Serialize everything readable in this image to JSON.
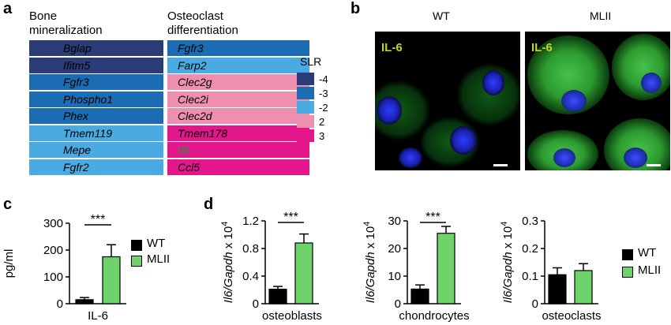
{
  "panels": {
    "a": "a",
    "b": "b",
    "c": "c",
    "d": "d"
  },
  "bone": {
    "title_line1": "Bone",
    "title_line2": "mineralization",
    "genes": [
      {
        "name": "Bglap",
        "slr": -4,
        "color": "#2b3c78"
      },
      {
        "name": "Ifitm5",
        "slr": -4,
        "color": "#2b3c78"
      },
      {
        "name": "Fgfr3",
        "slr": -3,
        "color": "#1b6cb2"
      },
      {
        "name": "Phospho1",
        "slr": -3,
        "color": "#1b6cb2"
      },
      {
        "name": "Phex",
        "slr": -3,
        "color": "#1b6cb2"
      },
      {
        "name": "Tmem119",
        "slr": -2,
        "color": "#4aabe2"
      },
      {
        "name": "Mepe",
        "slr": -2,
        "color": "#4aabe2"
      },
      {
        "name": "Fgfr2",
        "slr": -2,
        "color": "#4aabe2"
      }
    ]
  },
  "osteo": {
    "title_line1": "Osteoclast",
    "title_line2": "differentiation",
    "genes": [
      {
        "name": "Fgfr3",
        "slr": -3,
        "color": "#1b6cb2",
        "text_color": "#000000"
      },
      {
        "name": "Farp2",
        "slr": -2,
        "color": "#4aabe2",
        "text_color": "#000000"
      },
      {
        "name": "Clec2g",
        "slr": 2,
        "color": "#ef8fb0",
        "text_color": "#000000"
      },
      {
        "name": "Clec2i",
        "slr": 2,
        "color": "#ef8fb0",
        "text_color": "#000000"
      },
      {
        "name": "Clec2d",
        "slr": 2,
        "color": "#ef8fb0",
        "text_color": "#000000"
      },
      {
        "name": "Tmem178",
        "slr": 3,
        "color": "#e3168b",
        "text_color": "#000000"
      },
      {
        "name": "Il6",
        "slr": 3,
        "color": "#e3168b",
        "text_color": "#1a9a3a"
      },
      {
        "name": "Ccl5",
        "slr": 3,
        "color": "#e3168b",
        "text_color": "#000000"
      }
    ]
  },
  "slr_legend": {
    "title": "SLR",
    "entries": [
      {
        "label": "-4",
        "color": "#2b3c78"
      },
      {
        "label": "-3",
        "color": "#1b6cb2"
      },
      {
        "label": "-2",
        "color": "#4aabe2"
      },
      {
        "label": "2",
        "color": "#ef8fb0"
      },
      {
        "label": "3",
        "color": "#e3168b"
      }
    ]
  },
  "micrographs": {
    "wt_label": "WT",
    "mlii_label": "MLII",
    "stain": "IL-6"
  },
  "colors": {
    "wt": "#000000",
    "mlii": "#6fd36c"
  },
  "legend": {
    "wt": "WT",
    "mlii": "MLII"
  },
  "chart_data": [
    {
      "type": "bar",
      "panel": "c",
      "categories": [
        "IL-6"
      ],
      "series": [
        {
          "name": "WT",
          "values": [
            15
          ],
          "error": [
            8
          ]
        },
        {
          "name": "MLII",
          "values": [
            175
          ],
          "error": [
            45
          ]
        }
      ],
      "ylabel": "pg/ml",
      "ylim": [
        0,
        300
      ],
      "yticks": [
        "0",
        "100",
        "200",
        "300"
      ],
      "significance": "***"
    },
    {
      "type": "bar",
      "panel": "d",
      "categories": [
        "osteoblasts"
      ],
      "series": [
        {
          "name": "WT",
          "values": [
            0.21
          ],
          "error": [
            0.04
          ]
        },
        {
          "name": "MLII",
          "values": [
            0.88
          ],
          "error": [
            0.13
          ]
        }
      ],
      "ylabel_italic": "Il6/Gapdh",
      "ylabel_rest": " x 10",
      "ylabel_exp": "4",
      "ylim": [
        0,
        1.2
      ],
      "yticks": [
        "0",
        "0.4",
        "0.8",
        "1.2"
      ],
      "significance": "***"
    },
    {
      "type": "bar",
      "panel": "d",
      "categories": [
        "chondrocytes"
      ],
      "series": [
        {
          "name": "WT",
          "values": [
            5.3
          ],
          "error": [
            1.5
          ]
        },
        {
          "name": "MLII",
          "values": [
            25.5
          ],
          "error": [
            2.5
          ]
        }
      ],
      "ylabel_italic": "Il6/Gapdh",
      "ylabel_rest": " x 10",
      "ylabel_exp": "4",
      "ylim": [
        0,
        30
      ],
      "yticks": [
        "0",
        "10",
        "20",
        "30"
      ],
      "significance": "***"
    },
    {
      "type": "bar",
      "panel": "d",
      "categories": [
        "osteoclasts"
      ],
      "series": [
        {
          "name": "WT",
          "values": [
            0.105
          ],
          "error": [
            0.025
          ]
        },
        {
          "name": "MLII",
          "values": [
            0.12
          ],
          "error": [
            0.025
          ]
        }
      ],
      "ylabel_italic": "Il6/Gapdh",
      "ylabel_rest": " x 10",
      "ylabel_exp": "4",
      "ylim": [
        0,
        0.3
      ],
      "yticks": [
        "0",
        "0.1",
        "0.2",
        "0.3"
      ],
      "significance": ""
    }
  ]
}
